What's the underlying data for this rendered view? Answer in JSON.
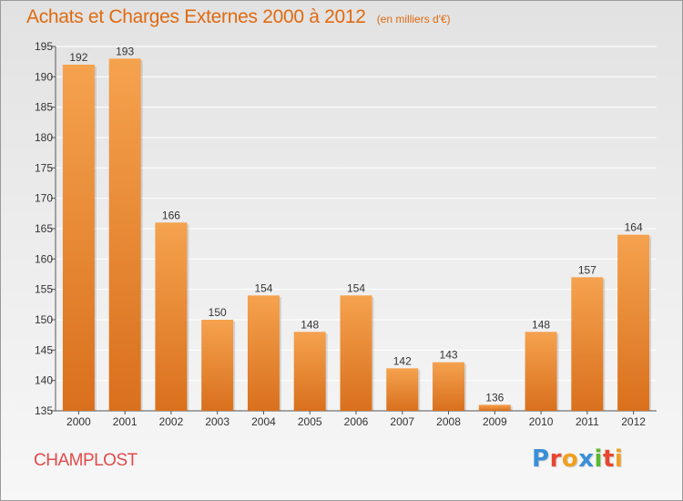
{
  "header": {
    "title": "Achats et Charges Externes 2000 à 2012",
    "subtitle": "(en milliers d'€)"
  },
  "footer": {
    "commune": "CHAMPLOST",
    "logo_text": "Proxiti",
    "logo_colors": [
      "#3a8fd8",
      "#e8462e",
      "#f0a020",
      "#3a8fd8",
      "#5cb82e",
      "#e8462e",
      "#f0a020"
    ]
  },
  "colors": {
    "title": "#e06a10",
    "bar_light": "#f5a24e",
    "bar_dark": "#d9701d",
    "commune": "#e14b4b"
  },
  "chart_data": {
    "type": "bar",
    "categories": [
      "2000",
      "2001",
      "2002",
      "2003",
      "2004",
      "2005",
      "2006",
      "2007",
      "2008",
      "2009",
      "2010",
      "2011",
      "2012"
    ],
    "values": [
      192,
      193,
      166,
      150,
      154,
      148,
      154,
      142,
      143,
      136,
      148,
      157,
      164
    ],
    "ylim": [
      135,
      195
    ],
    "yticks": [
      135,
      140,
      145,
      150,
      155,
      160,
      165,
      170,
      175,
      180,
      185,
      190,
      195
    ],
    "grid": "horizontal",
    "data_labels": true
  }
}
